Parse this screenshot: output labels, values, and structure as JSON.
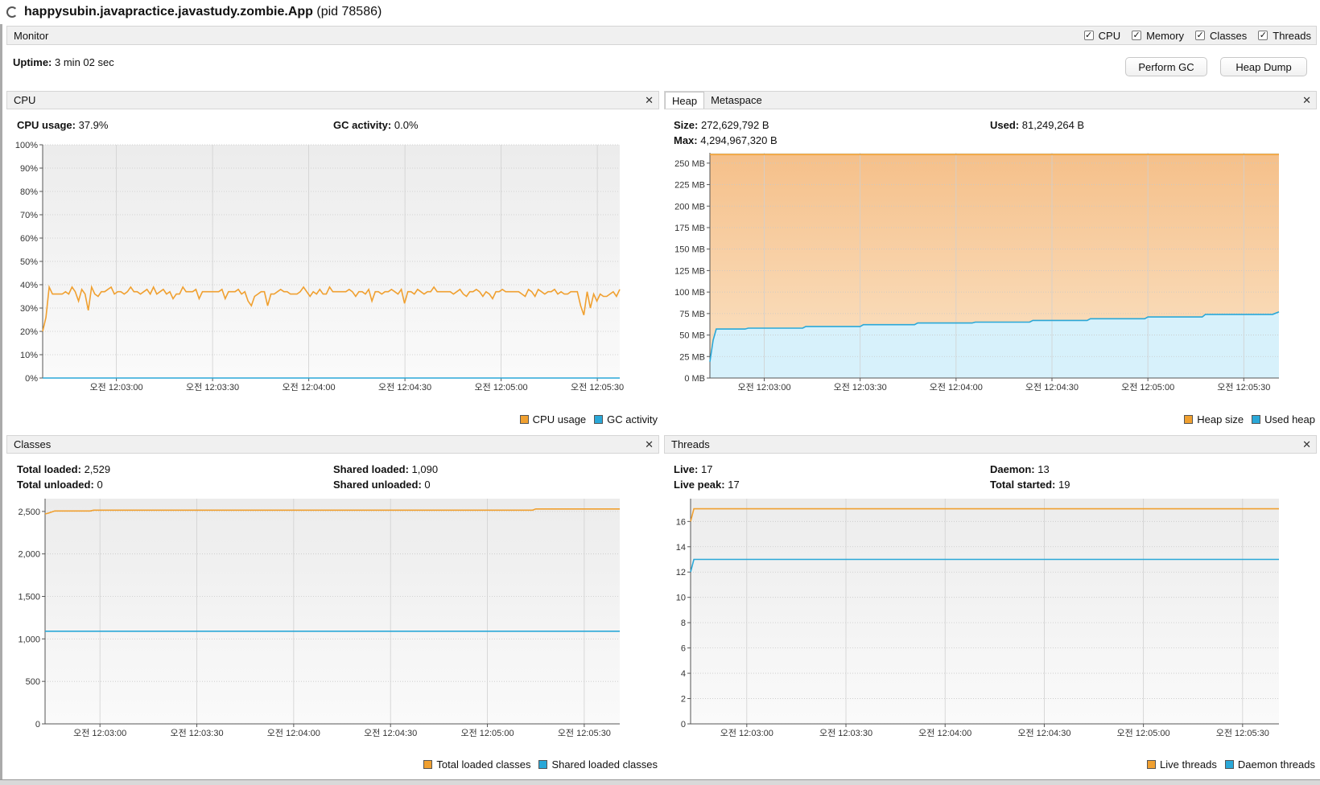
{
  "window": {
    "app_name": "happysubin.javapractice.javastudy.zombie.App",
    "pid_text": "(pid 78586)"
  },
  "monitor": {
    "label": "Monitor",
    "checkboxes": [
      {
        "label": "CPU",
        "checked": true
      },
      {
        "label": "Memory",
        "checked": true
      },
      {
        "label": "Classes",
        "checked": true
      },
      {
        "label": "Threads",
        "checked": true
      }
    ],
    "uptime_label": "Uptime:",
    "uptime_value": "3 min 02 sec",
    "perform_gc_label": "Perform GC",
    "heap_dump_label": "Heap Dump"
  },
  "cpu": {
    "title": "CPU",
    "usage_label": "CPU usage:",
    "usage_value": "37.9%",
    "gc_label": "GC activity:",
    "gc_value": "0.0%",
    "legend": [
      "CPU usage",
      "GC activity"
    ]
  },
  "heap": {
    "tabs": [
      "Heap",
      "Metaspace"
    ],
    "size_label": "Size:",
    "size_value": "272,629,792 B",
    "max_label": "Max:",
    "max_value": "4,294,967,320 B",
    "used_label": "Used:",
    "used_value": "81,249,264 B",
    "legend": [
      "Heap size",
      "Used heap"
    ]
  },
  "classes": {
    "title": "Classes",
    "total_loaded_label": "Total loaded:",
    "total_loaded_value": "2,529",
    "total_unloaded_label": "Total unloaded:",
    "total_unloaded_value": "0",
    "shared_loaded_label": "Shared loaded:",
    "shared_loaded_value": "1,090",
    "shared_unloaded_label": "Shared unloaded:",
    "shared_unloaded_value": "0",
    "legend": [
      "Total loaded classes",
      "Shared loaded classes"
    ]
  },
  "threads": {
    "title": "Threads",
    "live_label": "Live:",
    "live_value": "17",
    "live_peak_label": "Live peak:",
    "live_peak_value": "17",
    "daemon_label": "Daemon:",
    "daemon_value": "13",
    "total_started_label": "Total started:",
    "total_started_value": "19",
    "legend": [
      "Live threads",
      "Daemon threads"
    ]
  },
  "colors": {
    "orange": "#f0a030",
    "blue": "#2aa8d8",
    "heap_fill_top": "#f5c08a",
    "heap_fill_bottom": "#fbe3c6",
    "used_fill": "#d7f1fb",
    "plot_bg_top": "#ececec",
    "plot_bg_bottom": "#fafafa"
  },
  "chart_data": [
    {
      "name": "cpu",
      "type": "line",
      "x_ticks": [
        "오전 12:03:00",
        "오전 12:03:30",
        "오전 12:04:00",
        "오전 12:04:30",
        "오전 12:05:00",
        "오전 12:05:30"
      ],
      "x_tick_seconds": [
        23,
        53,
        83,
        113,
        143,
        173
      ],
      "x_range_seconds": [
        0,
        180
      ],
      "y_ticks": [
        "0%",
        "10%",
        "20%",
        "30%",
        "40%",
        "50%",
        "60%",
        "70%",
        "80%",
        "90%",
        "100%"
      ],
      "ylim": [
        0,
        100
      ],
      "series": [
        {
          "name": "CPU usage",
          "color": "#f0a030",
          "values": [
            20,
            26,
            39,
            36,
            36,
            36,
            36,
            37,
            36,
            39,
            37,
            33,
            38,
            36,
            29,
            39,
            36,
            35,
            37,
            37,
            38,
            39,
            36,
            37,
            37,
            36,
            37,
            39,
            37,
            37,
            36,
            37,
            38,
            36,
            39,
            36,
            37,
            38,
            36,
            37,
            34,
            36,
            36,
            39,
            37,
            37,
            37,
            38,
            34,
            37,
            37,
            37,
            37,
            37,
            37,
            38,
            34,
            37,
            37,
            37,
            38,
            36,
            37,
            33,
            31,
            35,
            36,
            37,
            37,
            31,
            36,
            36,
            37,
            38,
            37,
            37,
            36,
            36,
            36,
            37,
            39,
            37,
            35,
            37,
            36,
            38,
            36,
            36,
            39,
            37,
            37,
            37,
            37,
            37,
            38,
            37,
            35,
            37,
            37,
            36,
            38,
            33,
            37,
            37,
            36,
            37,
            37,
            38,
            37,
            36,
            38,
            32,
            37,
            37,
            36,
            38,
            37,
            36,
            37,
            37,
            39,
            37,
            37,
            37,
            37,
            37,
            36,
            37,
            38,
            36,
            35,
            37,
            37,
            38,
            37,
            35,
            37,
            36,
            34,
            37,
            37,
            38,
            37,
            37,
            37,
            37,
            37,
            36,
            35,
            38,
            37,
            35,
            38,
            37,
            36,
            37,
            37,
            38,
            36,
            37,
            36,
            36,
            37,
            37,
            37,
            31,
            27,
            37,
            30,
            36,
            33,
            36,
            35,
            35,
            36,
            37,
            35,
            38
          ]
        },
        {
          "name": "GC activity",
          "color": "#2aa8d8",
          "values": [
            0,
            0
          ]
        }
      ],
      "legend": "bottom-right"
    },
    {
      "name": "heap",
      "type": "area",
      "x_ticks": [
        "오전 12:03:00",
        "오전 12:03:30",
        "오전 12:04:00",
        "오전 12:04:30",
        "오전 12:05:00",
        "오전 12:05:30"
      ],
      "x_tick_seconds": [
        17,
        47,
        77,
        107,
        137,
        167
      ],
      "x_range_seconds": [
        0,
        178
      ],
      "y_ticks": [
        "0 MB",
        "25 MB",
        "50 MB",
        "75 MB",
        "100 MB",
        "125 MB",
        "150 MB",
        "175 MB",
        "200 MB",
        "225 MB",
        "250 MB"
      ],
      "ylim_mb": [
        0,
        262
      ],
      "series": [
        {
          "name": "Heap size",
          "color": "#f0a030",
          "x": [
            0,
            178
          ],
          "values": [
            260,
            260
          ]
        },
        {
          "name": "Used heap",
          "color": "#2aa8d8",
          "x": [
            0,
            1,
            2,
            11,
            12,
            29,
            30,
            47,
            48,
            64,
            65,
            82,
            83,
            100,
            101,
            118,
            119,
            136,
            137,
            154,
            155,
            176,
            178
          ],
          "values": [
            19,
            44,
            57,
            57,
            58,
            58,
            60,
            60,
            62,
            62,
            64,
            64,
            65,
            65,
            67,
            67,
            69,
            69,
            71,
            71,
            74,
            74,
            77
          ]
        }
      ],
      "legend": "bottom-right"
    },
    {
      "name": "classes",
      "type": "line",
      "x_ticks": [
        "오전 12:03:00",
        "오전 12:03:30",
        "오전 12:04:00",
        "오전 12:04:30",
        "오전 12:05:00",
        "오전 12:05:30"
      ],
      "x_tick_seconds": [
        17,
        47,
        77,
        107,
        137,
        167
      ],
      "x_range_seconds": [
        0,
        178
      ],
      "y_ticks": [
        "0",
        "500",
        "1,000",
        "1,500",
        "2,000",
        "2,500"
      ],
      "ylim": [
        0,
        2650
      ],
      "series": [
        {
          "name": "Total loaded classes",
          "color": "#f0a030",
          "x": [
            0,
            1,
            3,
            14,
            15,
            151,
            152,
            178
          ],
          "values": [
            2470,
            2480,
            2505,
            2505,
            2515,
            2515,
            2529,
            2529
          ]
        },
        {
          "name": "Shared loaded classes",
          "color": "#2aa8d8",
          "x": [
            0,
            178
          ],
          "values": [
            1090,
            1090
          ]
        }
      ],
      "legend": "bottom-right"
    },
    {
      "name": "threads",
      "type": "line",
      "x_ticks": [
        "오전 12:03:00",
        "오전 12:03:30",
        "오전 12:04:00",
        "오전 12:04:30",
        "오전 12:05:00",
        "오전 12:05:30"
      ],
      "x_tick_seconds": [
        17,
        47,
        77,
        107,
        137,
        167
      ],
      "x_range_seconds": [
        0,
        178
      ],
      "y_ticks": [
        "0",
        "2",
        "4",
        "6",
        "8",
        "10",
        "12",
        "14",
        "16"
      ],
      "ylim": [
        0,
        17.8
      ],
      "series": [
        {
          "name": "Live threads",
          "color": "#f0a030",
          "x": [
            0,
            1,
            178
          ],
          "values": [
            16,
            17,
            17
          ]
        },
        {
          "name": "Daemon threads",
          "color": "#2aa8d8",
          "x": [
            0,
            1,
            178
          ],
          "values": [
            12,
            13,
            13
          ]
        }
      ],
      "legend": "bottom-right"
    }
  ]
}
